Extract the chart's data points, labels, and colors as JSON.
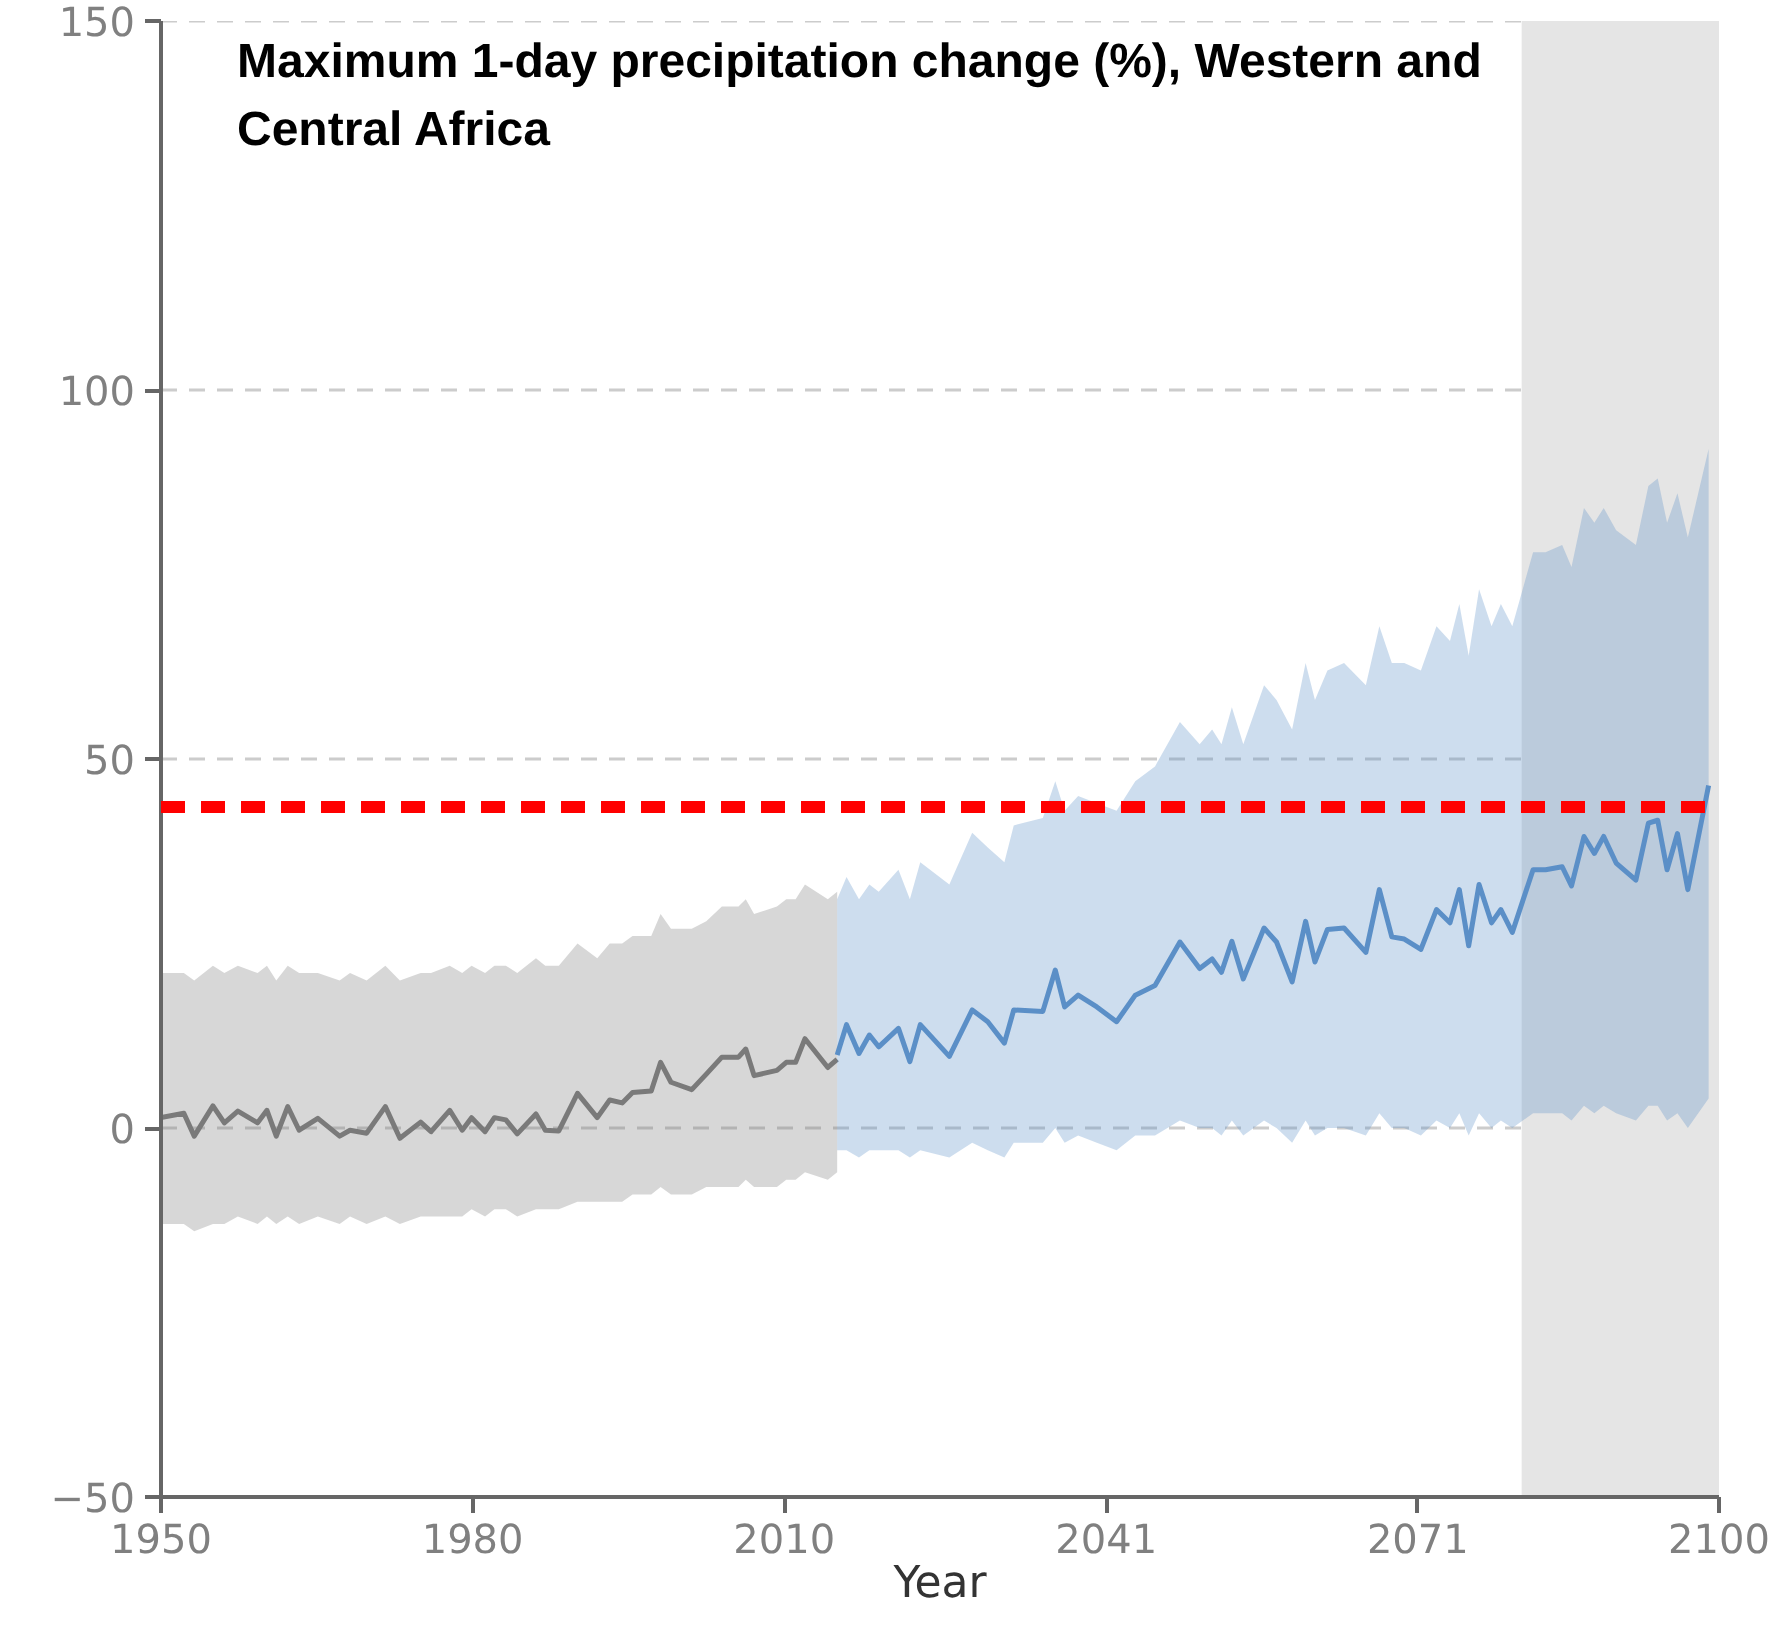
{
  "chart_data": {
    "type": "line",
    "title": "Maximum 1-day precipitation change (%), Western and Central Africa",
    "xlabel": "Year",
    "xlim": [
      1950,
      2100
    ],
    "xticks": [
      1950,
      1980,
      2010,
      2041,
      2071,
      2100
    ],
    "ylim": [
      -50,
      150
    ],
    "yticks": [
      -50,
      0,
      50,
      100,
      150
    ],
    "grid": "y",
    "marker": "none",
    "line_style": "solid",
    "series": [
      {
        "color": "#7a7a7a",
        "x": [
          1950,
          1952.2,
          1953.2,
          1955,
          1956.1,
          1957.4,
          1959.3,
          1960.2,
          1961.1,
          1962.2,
          1963.3,
          1965.1,
          1967.2,
          1968.2,
          1969.8,
          1971.6,
          1973,
          1975,
          1976,
          1977.8,
          1979,
          1979.9,
          1981.2,
          1982.1,
          1983.2,
          1984.3,
          1986.1,
          1987,
          1988.3,
          1990.1,
          1992,
          1993.2,
          1994.4,
          1995.4,
          1997.2,
          1998.1,
          1999.1,
          2001.1,
          2002.5,
          2004,
          2005.6,
          2006.3,
          2007.1,
          2009.3,
          2010.2,
          2011.1,
          2012,
          2014.2,
          2015.1
        ],
        "values": [
          1.4,
          2,
          -1.1,
          3,
          0.7,
          2.3,
          0.7,
          2.4,
          -1.1,
          2.9,
          -0.3,
          1.3,
          -1.1,
          -0.3,
          -0.7,
          2.9,
          -1.4,
          0.8,
          -0.5,
          2.4,
          -0.3,
          1.4,
          -0.5,
          1.4,
          1.1,
          -0.8,
          1.9,
          -0.3,
          -0.4,
          4.7,
          1.4,
          3.8,
          3.4,
          4.8,
          5,
          8.9,
          6.2,
          5.2,
          7.3,
          9.6,
          9.6,
          10.7,
          7.1,
          7.8,
          8.9,
          8.9,
          12.1,
          8.2,
          9.3
        ],
        "lower": [
          -13,
          -13,
          -14,
          -13,
          -13,
          -12,
          -13,
          -12,
          -13,
          -12,
          -13,
          -12,
          -13,
          -12,
          -13,
          -12,
          -13,
          -12,
          -12,
          -12,
          -12,
          -11,
          -12,
          -11,
          -11,
          -12,
          -11,
          -11,
          -11,
          -10,
          -10,
          -10,
          -10,
          -9,
          -9,
          -8,
          -9,
          -9,
          -8,
          -8,
          -8,
          -7,
          -8,
          -8,
          -7,
          -7,
          -6,
          -7,
          -6
        ],
        "upper": [
          21,
          21,
          20,
          22,
          21,
          22,
          21,
          22,
          20,
          22,
          21,
          21,
          20,
          21,
          20,
          22,
          20,
          21,
          21,
          22,
          21,
          22,
          21,
          22,
          22,
          21,
          23,
          22,
          22,
          25,
          23,
          25,
          25,
          26,
          26,
          29,
          27,
          27,
          28,
          30,
          30,
          31,
          29,
          30,
          31,
          31,
          33,
          31,
          32
        ]
      },
      {
        "color": "#5b8fc7",
        "x": [
          2015.1,
          2016,
          2017.2,
          2018.2,
          2019.1,
          2021,
          2022.1,
          2023.1,
          2025.9,
          2028.1,
          2029.6,
          2031.2,
          2032.1,
          2034.9,
          2036.1,
          2037,
          2038.3,
          2040.1,
          2042,
          2043.8,
          2045.7,
          2048.1,
          2050,
          2051.2,
          2052.1,
          2053.1,
          2054.2,
          2056.2,
          2057.4,
          2058.9,
          2060.2,
          2061.1,
          2062.3,
          2063.9,
          2066,
          2067.3,
          2068.5,
          2069.7,
          2071.3,
          2072.8,
          2074.1,
          2075,
          2075.9,
          2076.9,
          2078.1,
          2079,
          2080.1,
          2082.1,
          2083.3,
          2084.9,
          2085.8,
          2087,
          2088,
          2088.9,
          2090.1,
          2092,
          2093.2,
          2094.1,
          2095,
          2096,
          2097,
          2099
        ],
        "values": [
          9.9,
          14,
          10.1,
          12.6,
          11,
          13.5,
          9,
          14,
          9.7,
          16,
          14.4,
          11.5,
          16,
          15.8,
          21.4,
          16.4,
          18,
          16.4,
          14.4,
          18,
          19.3,
          25.2,
          21.6,
          22.9,
          21.1,
          25.3,
          20.2,
          27.1,
          25.2,
          19.8,
          28,
          22.5,
          26.9,
          27.1,
          23.8,
          32.3,
          25.9,
          25.6,
          24.2,
          29.6,
          27.8,
          32.3,
          24.7,
          33,
          27.8,
          29.6,
          26.5,
          35,
          35,
          35.4,
          32.8,
          39.5,
          37.2,
          39.5,
          35.9,
          33.6,
          41.3,
          41.7,
          35,
          39.9,
          32.3,
          46.4
        ],
        "lower": [
          -3,
          -3,
          -4,
          -3,
          -3,
          -3,
          -4,
          -3,
          -4,
          -2,
          -3,
          -4,
          -2,
          -2,
          0,
          -2,
          -1,
          -2,
          -3,
          -1,
          -1,
          1,
          0,
          0,
          -1,
          1,
          -1,
          1,
          0,
          -2,
          1,
          -1,
          0,
          0,
          -1,
          2,
          0,
          0,
          -1,
          1,
          0,
          2,
          -1,
          2,
          0,
          1,
          0,
          2,
          2,
          2,
          1,
          3,
          2,
          3,
          2,
          1,
          3,
          3,
          1,
          2,
          0,
          4
        ],
        "upper": [
          31,
          34,
          31,
          33,
          32,
          35,
          31,
          36,
          33,
          40,
          38,
          36,
          41,
          42,
          47,
          43,
          45,
          44,
          43,
          47,
          49,
          55,
          52,
          54,
          52,
          57,
          52,
          60,
          58,
          54,
          63,
          58,
          62,
          63,
          60,
          68,
          63,
          63,
          62,
          68,
          66,
          71,
          64,
          73,
          68,
          71,
          68,
          78,
          78,
          79,
          76,
          84,
          82,
          84,
          81,
          79,
          87,
          88,
          82,
          86,
          80,
          92
        ]
      }
    ],
    "ref_lines": [
      {
        "axis": "y",
        "value": 43.5,
        "color": "#ff0000",
        "line_style": "dashed"
      }
    ],
    "bands": [
      {
        "axis": "x",
        "from": 2081,
        "to": 2100,
        "color": "#e5e5e5"
      }
    ]
  }
}
